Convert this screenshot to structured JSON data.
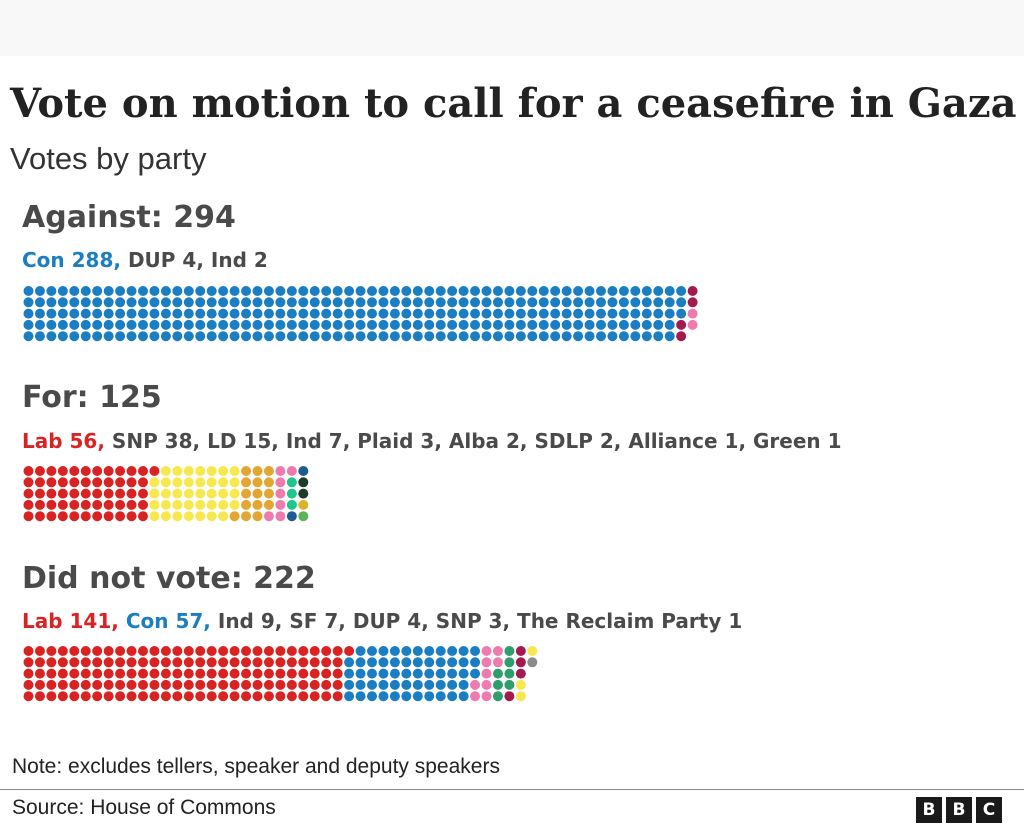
{
  "title": "Vote on motion to call for a ceasefire in Gaza",
  "subtitle": "Votes by party",
  "note": "Note: excludes tellers, speaker and deputy speakers",
  "source": "Source: House of Commons",
  "logo": [
    "B",
    "B",
    "C"
  ],
  "chart_data": {
    "type": "dot-matrix",
    "rows_per_column": 5,
    "groups": [
      {
        "id": "against",
        "label": "Against: 294",
        "total": 294,
        "parties": [
          {
            "name": "Con",
            "value": 288,
            "label": "Con 288,",
            "color": "#1b7ec2",
            "highlight": true
          },
          {
            "name": "DUP",
            "value": 4,
            "label": "DUP 4,",
            "color": "#a31a4f",
            "highlight": false
          },
          {
            "name": "Ind",
            "value": 2,
            "label": "Ind 2",
            "color": "#ee7bb0",
            "highlight": false
          }
        ]
      },
      {
        "id": "for",
        "label": "For: 125",
        "total": 125,
        "parties": [
          {
            "name": "Lab",
            "value": 56,
            "label": "Lab 56,",
            "color": "#d92323",
            "highlight": true
          },
          {
            "name": "SNP",
            "value": 38,
            "label": "SNP 38,",
            "color": "#f6e84e",
            "highlight": false
          },
          {
            "name": "LD",
            "value": 15,
            "label": "LD 15,",
            "color": "#e2a631",
            "highlight": false
          },
          {
            "name": "Ind",
            "value": 7,
            "label": "Ind 7,",
            "color": "#ee7bb0",
            "highlight": false
          },
          {
            "name": "Plaid",
            "value": 3,
            "label": "Plaid 3,",
            "color": "#1ec68a",
            "highlight": false
          },
          {
            "name": "Alba",
            "value": 2,
            "label": "Alba 2,",
            "color": "#1c5c90",
            "highlight": false
          },
          {
            "name": "SDLP",
            "value": 2,
            "label": "SDLP 2,",
            "color": "#1e3b2a",
            "highlight": false
          },
          {
            "name": "Alliance",
            "value": 1,
            "label": "Alliance 1,",
            "color": "#d9b428",
            "highlight": false
          },
          {
            "name": "Green",
            "value": 1,
            "label": "Green 1",
            "color": "#5fb357",
            "highlight": false
          }
        ]
      },
      {
        "id": "did-not-vote",
        "label": "Did not vote: 222",
        "total": 222,
        "parties": [
          {
            "name": "Lab",
            "value": 141,
            "label": "Lab 141,",
            "color": "#d92323",
            "highlight": true
          },
          {
            "name": "Con",
            "value": 57,
            "label": "Con 57,",
            "color": "#1b7ec2",
            "highlight": true
          },
          {
            "name": "Ind",
            "value": 9,
            "label": "Ind 9,",
            "color": "#ee7bb0",
            "highlight": false
          },
          {
            "name": "SF",
            "value": 7,
            "label": "SF 7,",
            "color": "#2e9e6b",
            "highlight": false
          },
          {
            "name": "DUP",
            "value": 4,
            "label": "DUP 4,",
            "color": "#a31a4f",
            "highlight": false
          },
          {
            "name": "SNP",
            "value": 3,
            "label": "SNP 3,",
            "color": "#f6e84e",
            "highlight": false
          },
          {
            "name": "The Reclaim Party",
            "value": 1,
            "label": "The Reclaim Party 1",
            "color": "#8b8b8b",
            "highlight": false
          }
        ]
      }
    ]
  }
}
